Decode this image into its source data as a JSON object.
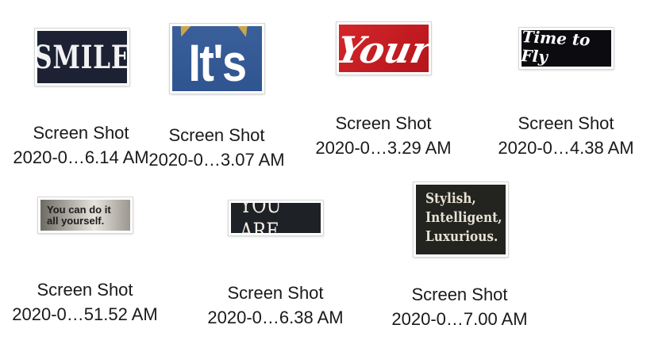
{
  "files": [
    {
      "id": "smile",
      "thumb_text": [
        "SMILE"
      ],
      "name_line1": "Screen Shot",
      "name_line2": "2020-0…6.14 AM"
    },
    {
      "id": "its",
      "thumb_text": [
        "It's"
      ],
      "name_line1": "Screen Shot",
      "name_line2": "2020-0…3.07 AM"
    },
    {
      "id": "your",
      "thumb_text": [
        "Your"
      ],
      "name_line1": "Screen Shot",
      "name_line2": "2020-0…3.29 AM"
    },
    {
      "id": "fly",
      "thumb_text": [
        "Time to Fly"
      ],
      "name_line1": "Screen Shot",
      "name_line2": "2020-0…4.38 AM"
    },
    {
      "id": "cando",
      "thumb_text": [
        "You can do it",
        "all yourself."
      ],
      "name_line1": "Screen Shot",
      "name_line2": "2020-0…51.52 AM"
    },
    {
      "id": "youare",
      "thumb_text": [
        "YOU ARE"
      ],
      "name_line1": "Screen Shot",
      "name_line2": "2020-0…6.38 AM"
    },
    {
      "id": "stylish",
      "thumb_text": [
        "Stylish,",
        "Intelligent,",
        "Luxurious."
      ],
      "name_line1": "Screen Shot",
      "name_line2": "2020-0…7.00 AM"
    }
  ]
}
